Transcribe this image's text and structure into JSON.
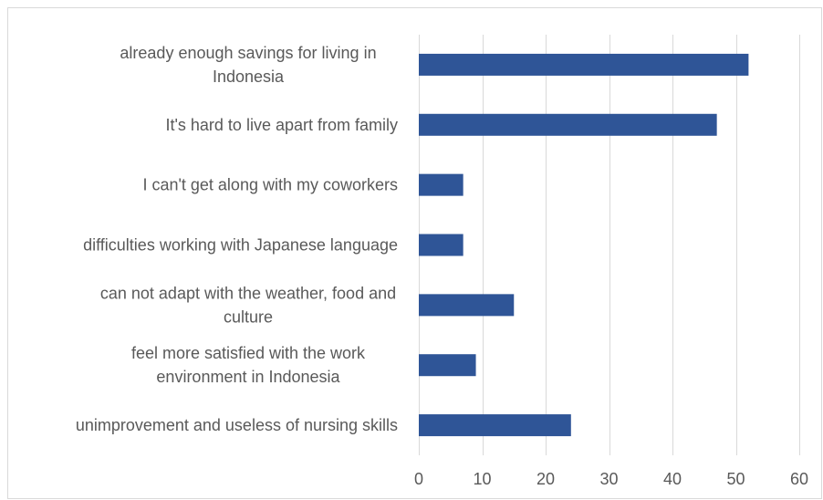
{
  "chart_data": {
    "type": "bar",
    "orientation": "horizontal",
    "categories": [
      [
        "already enough savings for living in",
        "Indonesia"
      ],
      [
        "It's hard to live apart from family"
      ],
      [
        "I can't get along with my coworkers"
      ],
      [
        "difficulties working with Japanese language"
      ],
      [
        "can not adapt with the weather, food and",
        "culture"
      ],
      [
        "feel more satisfied with the work",
        "environment in Indonesia"
      ],
      [
        "unimprovement and useless of nursing skills"
      ]
    ],
    "values": [
      52,
      47,
      7,
      7,
      15,
      9,
      24
    ],
    "xlim": [
      0,
      60
    ],
    "ticks": [
      0,
      10,
      20,
      30,
      40,
      50,
      60
    ],
    "tick_labels": [
      "0",
      "10",
      "20",
      "30",
      "40",
      "50",
      "60"
    ],
    "grid": true,
    "legend": "none",
    "title": "",
    "xlabel": "",
    "ylabel": "",
    "colors": {
      "bar": "#2f5597",
      "grid": "#d9d9d9",
      "text": "#595959"
    }
  }
}
